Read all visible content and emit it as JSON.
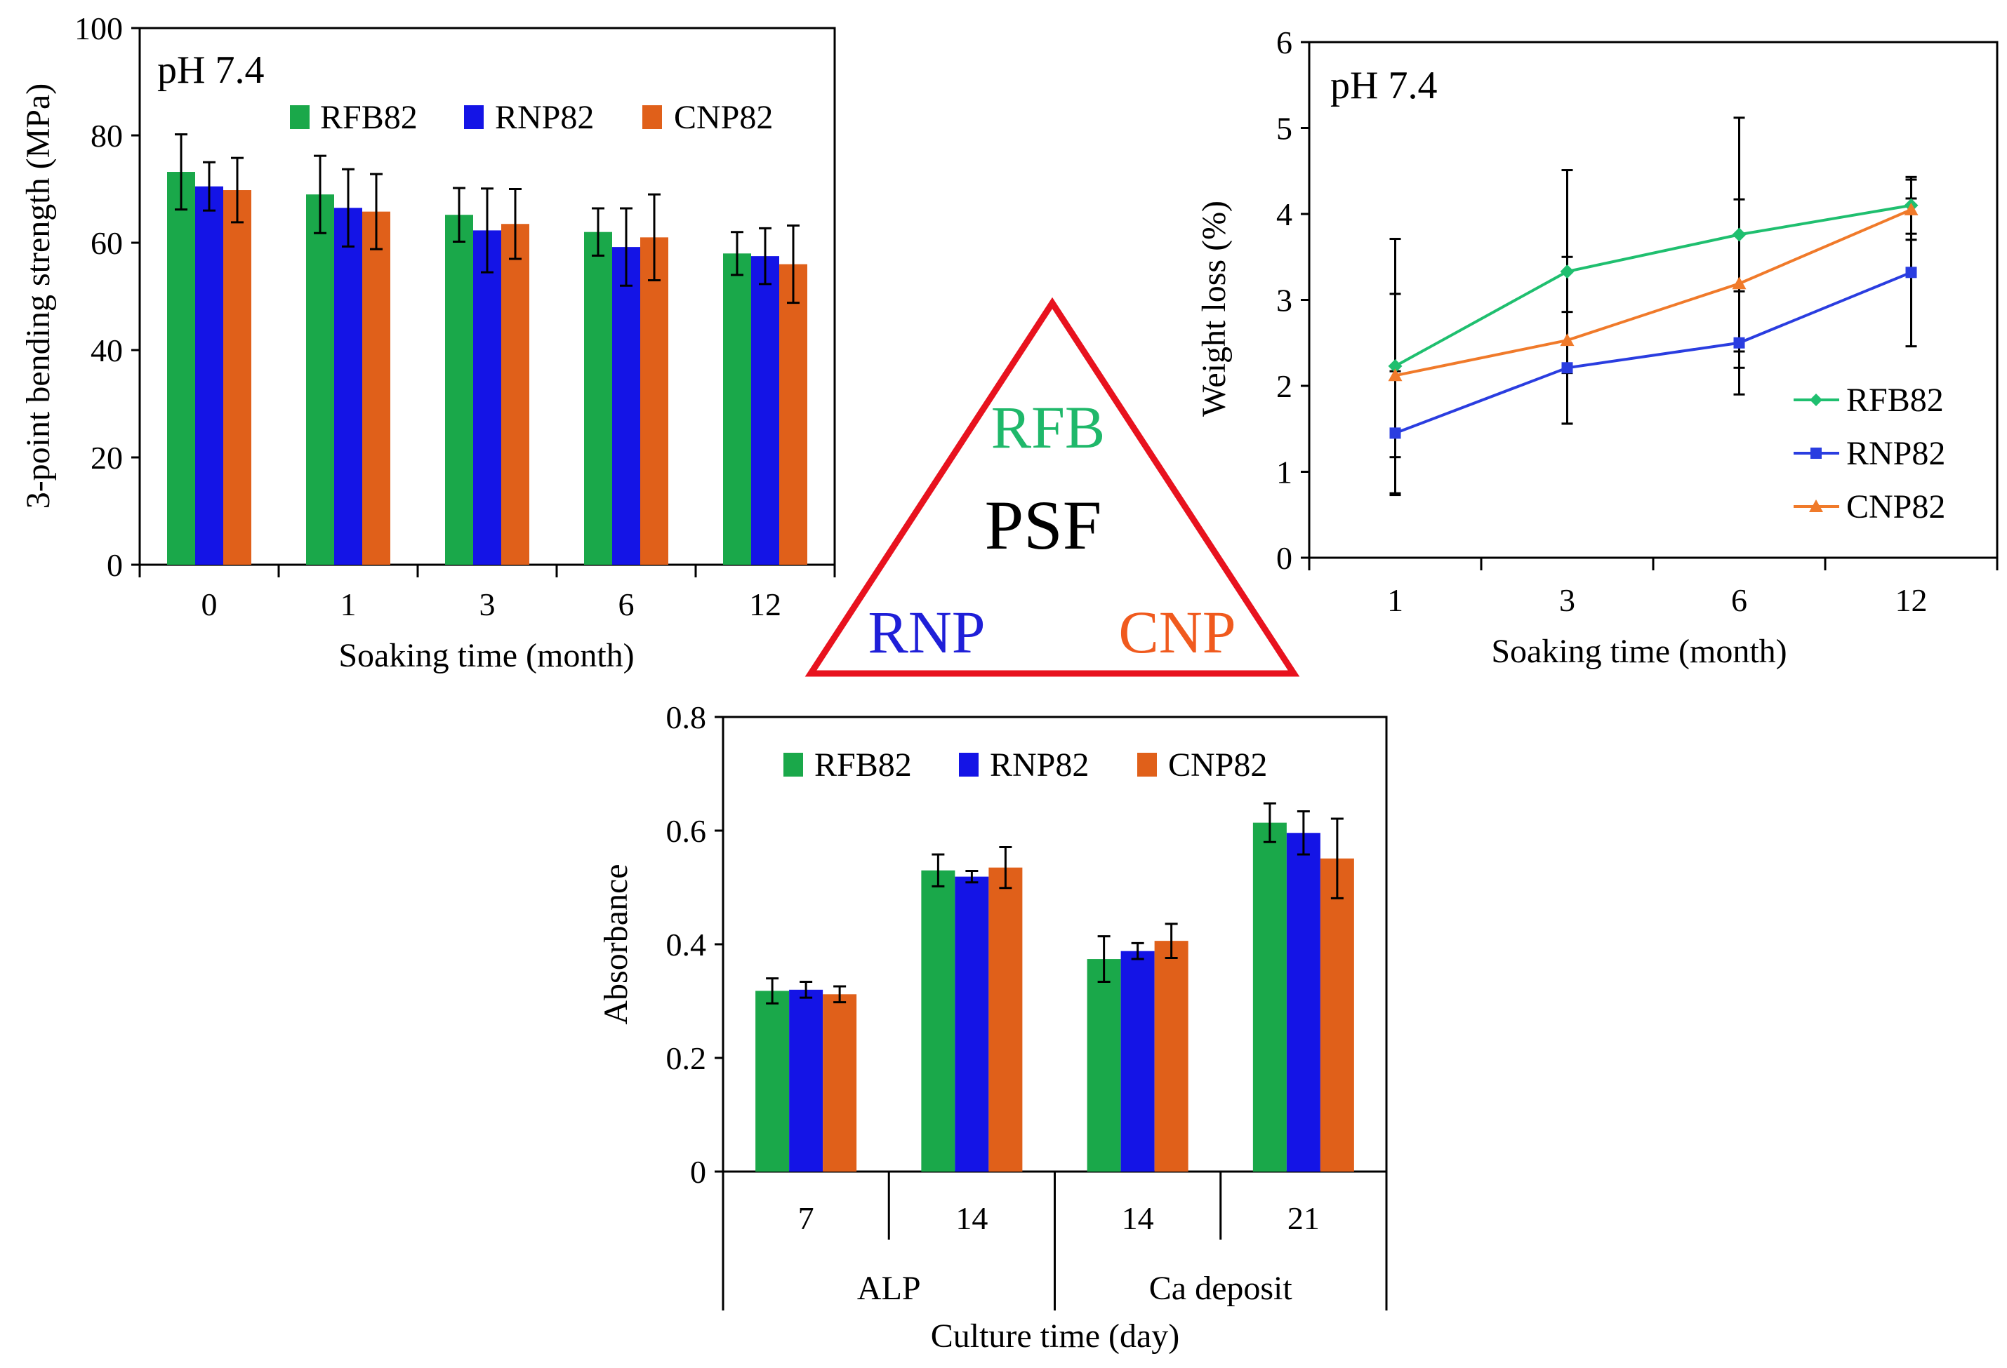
{
  "colors": {
    "green": "#1aa84a",
    "blue": "#1414e6",
    "orange": "#e0601a",
    "line_green": "#1fbf6f",
    "line_blue": "#2a3de0",
    "line_orange": "#f07a2a",
    "triangle": "#e8121e",
    "tri_green": "#1fb86a",
    "tri_blue": "#1f1fd8",
    "tri_orange": "#f05a1e"
  },
  "legend": [
    "RFB82",
    "RNP82",
    "CNP82"
  ],
  "center": {
    "top": "RFB",
    "middle": "PSF",
    "left": "RNP",
    "right": "CNP"
  },
  "chart_data": [
    {
      "id": "bending",
      "type": "bar",
      "annotation": "pH 7.4",
      "xlabel": "Soaking time (month)",
      "ylabel": "3-point bending strength (MPa)",
      "ylim": [
        0,
        100
      ],
      "yticks": [
        "0",
        "20",
        "40",
        "60",
        "80",
        "100"
      ],
      "categories": [
        "0",
        "1",
        "3",
        "6",
        "12"
      ],
      "series": [
        {
          "name": "RFB82",
          "values": [
            73.2,
            69.0,
            65.2,
            62.0,
            58.0
          ],
          "errors": [
            7.0,
            7.2,
            5.0,
            4.4,
            4.0
          ]
        },
        {
          "name": "RNP82",
          "values": [
            70.5,
            66.5,
            62.3,
            59.2,
            57.5
          ],
          "errors": [
            4.5,
            7.2,
            7.8,
            7.2,
            5.2
          ]
        },
        {
          "name": "CNP82",
          "values": [
            69.8,
            65.8,
            63.5,
            61.0,
            56.0
          ],
          "errors": [
            6.0,
            7.0,
            6.5,
            8.0,
            7.2
          ]
        }
      ]
    },
    {
      "id": "weightloss",
      "type": "line",
      "annotation": "pH 7.4",
      "xlabel": "Soaking time (month)",
      "ylabel": "Weight  loss (%)",
      "ylim": [
        0,
        6
      ],
      "yticks": [
        "0",
        "1",
        "2",
        "3",
        "4",
        "5",
        "6"
      ],
      "categories": [
        "1",
        "3",
        "6",
        "12"
      ],
      "series": [
        {
          "name": "RFB82",
          "values": [
            2.23,
            3.33,
            3.76,
            4.1
          ],
          "errors": [
            1.48,
            1.18,
            1.36,
            0.33
          ]
        },
        {
          "name": "RNP82",
          "values": [
            1.45,
            2.21,
            2.5,
            3.32
          ],
          "errors": [
            0.72,
            0.65,
            0.6,
            0.86
          ]
        },
        {
          "name": "CNP82",
          "values": [
            2.12,
            2.53,
            3.19,
            4.05
          ],
          "errors": [
            0.95,
            0.97,
            0.98,
            0.35
          ]
        }
      ]
    },
    {
      "id": "absorbance",
      "type": "bar",
      "xlabel": "Culture time (day)",
      "ylabel": "Absorbance",
      "ylim": [
        0,
        0.8
      ],
      "yticks": [
        "0",
        "0.2",
        "0.4",
        "0.6",
        "0.8"
      ],
      "categories": [
        "7",
        "14",
        "14",
        "21"
      ],
      "groups": [
        {
          "label": "ALP",
          "span": 2
        },
        {
          "label": "Ca deposit",
          "span": 2
        }
      ],
      "series": [
        {
          "name": "RFB82",
          "values": [
            0.318,
            0.53,
            0.374,
            0.614
          ],
          "errors": [
            0.022,
            0.028,
            0.04,
            0.034
          ]
        },
        {
          "name": "RNP82",
          "values": [
            0.32,
            0.519,
            0.388,
            0.596
          ],
          "errors": [
            0.014,
            0.01,
            0.014,
            0.038
          ]
        },
        {
          "name": "CNP82",
          "values": [
            0.312,
            0.535,
            0.406,
            0.551
          ],
          "errors": [
            0.014,
            0.036,
            0.03,
            0.07
          ]
        }
      ]
    }
  ]
}
